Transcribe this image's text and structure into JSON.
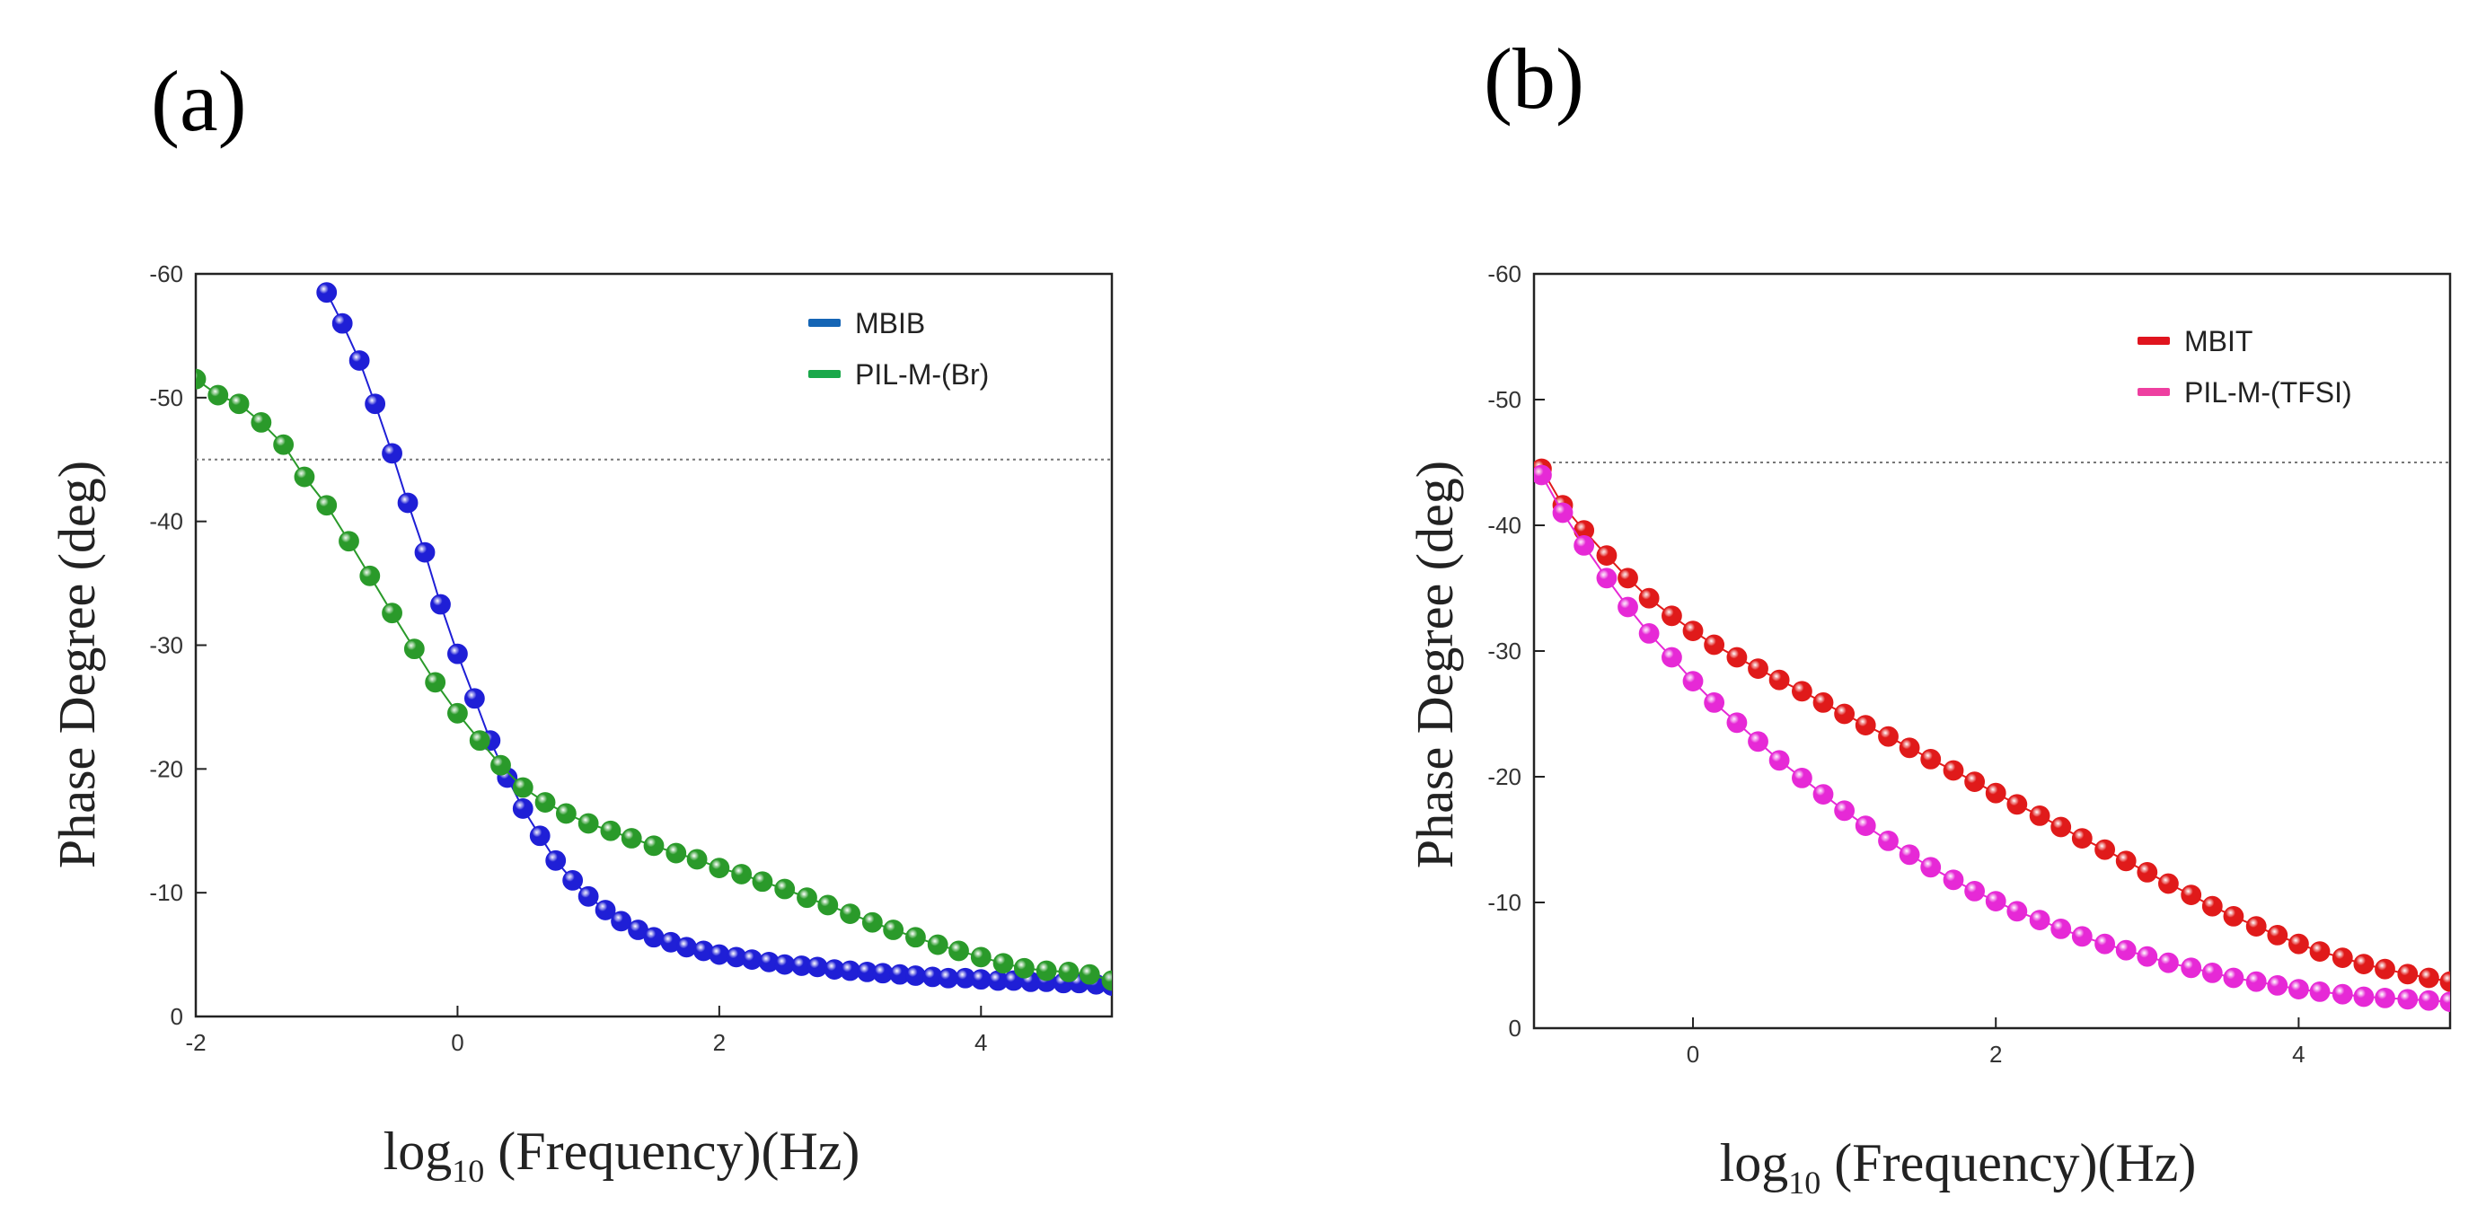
{
  "chart_data": [
    {
      "panel": "(a)",
      "type": "line",
      "xlabel": "log10 (Frequency)(Hz)",
      "xlabel_base": "log",
      "xlabel_sub": "10",
      "xlabel_rest": " (Frequency)(Hz)",
      "ylabel": "Phase Degree (deg)",
      "xlim": [
        -2,
        5
      ],
      "ylim": [
        0,
        -60
      ],
      "xticks": [
        -2,
        0,
        2,
        4
      ],
      "yticks": [
        0,
        -10,
        -20,
        -30,
        -40,
        -50,
        -60
      ],
      "reference_line": -45,
      "legend_position": "top-right",
      "series": [
        {
          "name": "MBIB",
          "color": "#1f1fd6",
          "legend_color": "#1565b5",
          "x": [
            -1.0,
            -0.88,
            -0.75,
            -0.63,
            -0.5,
            -0.38,
            -0.25,
            -0.13,
            0.0,
            0.13,
            0.25,
            0.38,
            0.5,
            0.63,
            0.75,
            0.88,
            1.0,
            1.13,
            1.25,
            1.38,
            1.5,
            1.63,
            1.75,
            1.88,
            2.0,
            2.13,
            2.25,
            2.38,
            2.5,
            2.63,
            2.75,
            2.88,
            3.0,
            3.13,
            3.25,
            3.38,
            3.5,
            3.63,
            3.75,
            3.88,
            4.0,
            4.13,
            4.25,
            4.38,
            4.5,
            4.63,
            4.75,
            4.88,
            5.0
          ],
          "y": [
            -58.5,
            -56.0,
            -53.0,
            -49.5,
            -45.5,
            -41.5,
            -37.5,
            -33.3,
            -29.3,
            -25.7,
            -22.3,
            -19.3,
            -16.8,
            -14.6,
            -12.6,
            -11.0,
            -9.7,
            -8.6,
            -7.7,
            -7.0,
            -6.4,
            -6.0,
            -5.6,
            -5.3,
            -5.0,
            -4.8,
            -4.6,
            -4.4,
            -4.2,
            -4.1,
            -4.0,
            -3.8,
            -3.7,
            -3.6,
            -3.5,
            -3.4,
            -3.3,
            -3.2,
            -3.1,
            -3.1,
            -3.0,
            -2.9,
            -2.9,
            -2.8,
            -2.8,
            -2.7,
            -2.7,
            -2.6,
            -2.5
          ]
        },
        {
          "name": "PIL-M-(Br)",
          "color": "#2a9a2a",
          "legend_color": "#1aa84a",
          "x": [
            -2.0,
            -1.83,
            -1.67,
            -1.5,
            -1.33,
            -1.17,
            -1.0,
            -0.83,
            -0.67,
            -0.5,
            -0.33,
            -0.17,
            0.0,
            0.17,
            0.33,
            0.5,
            0.67,
            0.83,
            1.0,
            1.17,
            1.33,
            1.5,
            1.67,
            1.83,
            2.0,
            2.17,
            2.33,
            2.5,
            2.67,
            2.83,
            3.0,
            3.17,
            3.33,
            3.5,
            3.67,
            3.83,
            4.0,
            4.17,
            4.33,
            4.5,
            4.67,
            4.83,
            5.0
          ],
          "y": [
            -51.5,
            -50.2,
            -49.5,
            -48.0,
            -46.2,
            -43.6,
            -41.3,
            -38.4,
            -35.6,
            -32.6,
            -29.7,
            -27.0,
            -24.5,
            -22.3,
            -20.3,
            -18.5,
            -17.3,
            -16.4,
            -15.6,
            -15.0,
            -14.4,
            -13.8,
            -13.2,
            -12.7,
            -12.0,
            -11.5,
            -10.9,
            -10.3,
            -9.6,
            -9.0,
            -8.3,
            -7.6,
            -7.0,
            -6.4,
            -5.8,
            -5.3,
            -4.8,
            -4.3,
            -3.9,
            -3.7,
            -3.6,
            -3.4,
            -2.9
          ]
        }
      ]
    },
    {
      "panel": "(b)",
      "type": "line",
      "xlabel": "log10 (Frequency)(Hz)",
      "xlabel_base": "log",
      "xlabel_sub": "10",
      "xlabel_rest": " (Frequency)(Hz)",
      "ylabel": "Phase Degree (deg)",
      "xlim": [
        -1.05,
        5
      ],
      "ylim": [
        0,
        -60
      ],
      "xticks": [
        0,
        2,
        4
      ],
      "yticks": [
        0,
        -10,
        -20,
        -30,
        -40,
        -50,
        -60
      ],
      "reference_line": -45,
      "legend_position": "top-right",
      "series": [
        {
          "name": "MBIT",
          "color": "#e01a1a",
          "legend_color": "#e0141e",
          "x": [
            -1.0,
            -0.86,
            -0.72,
            -0.57,
            -0.43,
            -0.29,
            -0.14,
            0.0,
            0.14,
            0.29,
            0.43,
            0.57,
            0.72,
            0.86,
            1.0,
            1.14,
            1.29,
            1.43,
            1.57,
            1.72,
            1.86,
            2.0,
            2.14,
            2.29,
            2.43,
            2.57,
            2.72,
            2.86,
            3.0,
            3.14,
            3.29,
            3.43,
            3.57,
            3.72,
            3.86,
            4.0,
            4.14,
            4.29,
            4.43,
            4.57,
            4.72,
            4.86,
            5.0
          ],
          "y": [
            -44.5,
            -41.6,
            -39.6,
            -37.6,
            -35.8,
            -34.2,
            -32.8,
            -31.6,
            -30.5,
            -29.5,
            -28.6,
            -27.7,
            -26.8,
            -25.9,
            -25.0,
            -24.1,
            -23.2,
            -22.3,
            -21.4,
            -20.5,
            -19.6,
            -18.7,
            -17.8,
            -16.9,
            -16.0,
            -15.1,
            -14.2,
            -13.3,
            -12.4,
            -11.5,
            -10.6,
            -9.7,
            -8.9,
            -8.1,
            -7.4,
            -6.7,
            -6.1,
            -5.6,
            -5.1,
            -4.7,
            -4.3,
            -4.0,
            -3.7
          ]
        },
        {
          "name": "PIL-M-(TFSI)",
          "color": "#e629d6",
          "legend_color": "#ee3fa0",
          "x": [
            -1.0,
            -0.86,
            -0.72,
            -0.57,
            -0.43,
            -0.29,
            -0.14,
            0.0,
            0.14,
            0.29,
            0.43,
            0.57,
            0.72,
            0.86,
            1.0,
            1.14,
            1.29,
            1.43,
            1.57,
            1.72,
            1.86,
            2.0,
            2.14,
            2.29,
            2.43,
            2.57,
            2.72,
            2.86,
            3.0,
            3.14,
            3.29,
            3.43,
            3.57,
            3.72,
            3.86,
            4.0,
            4.14,
            4.29,
            4.43,
            4.57,
            4.72,
            4.86,
            5.0
          ],
          "y": [
            -44.0,
            -41.0,
            -38.4,
            -35.8,
            -33.5,
            -31.4,
            -29.5,
            -27.6,
            -25.9,
            -24.3,
            -22.8,
            -21.3,
            -19.9,
            -18.6,
            -17.3,
            -16.1,
            -14.9,
            -13.8,
            -12.8,
            -11.8,
            -10.9,
            -10.1,
            -9.3,
            -8.6,
            -7.9,
            -7.3,
            -6.7,
            -6.2,
            -5.7,
            -5.2,
            -4.8,
            -4.4,
            -4.0,
            -3.7,
            -3.4,
            -3.1,
            -2.9,
            -2.7,
            -2.5,
            -2.4,
            -2.3,
            -2.2,
            -2.1
          ]
        }
      ]
    }
  ]
}
